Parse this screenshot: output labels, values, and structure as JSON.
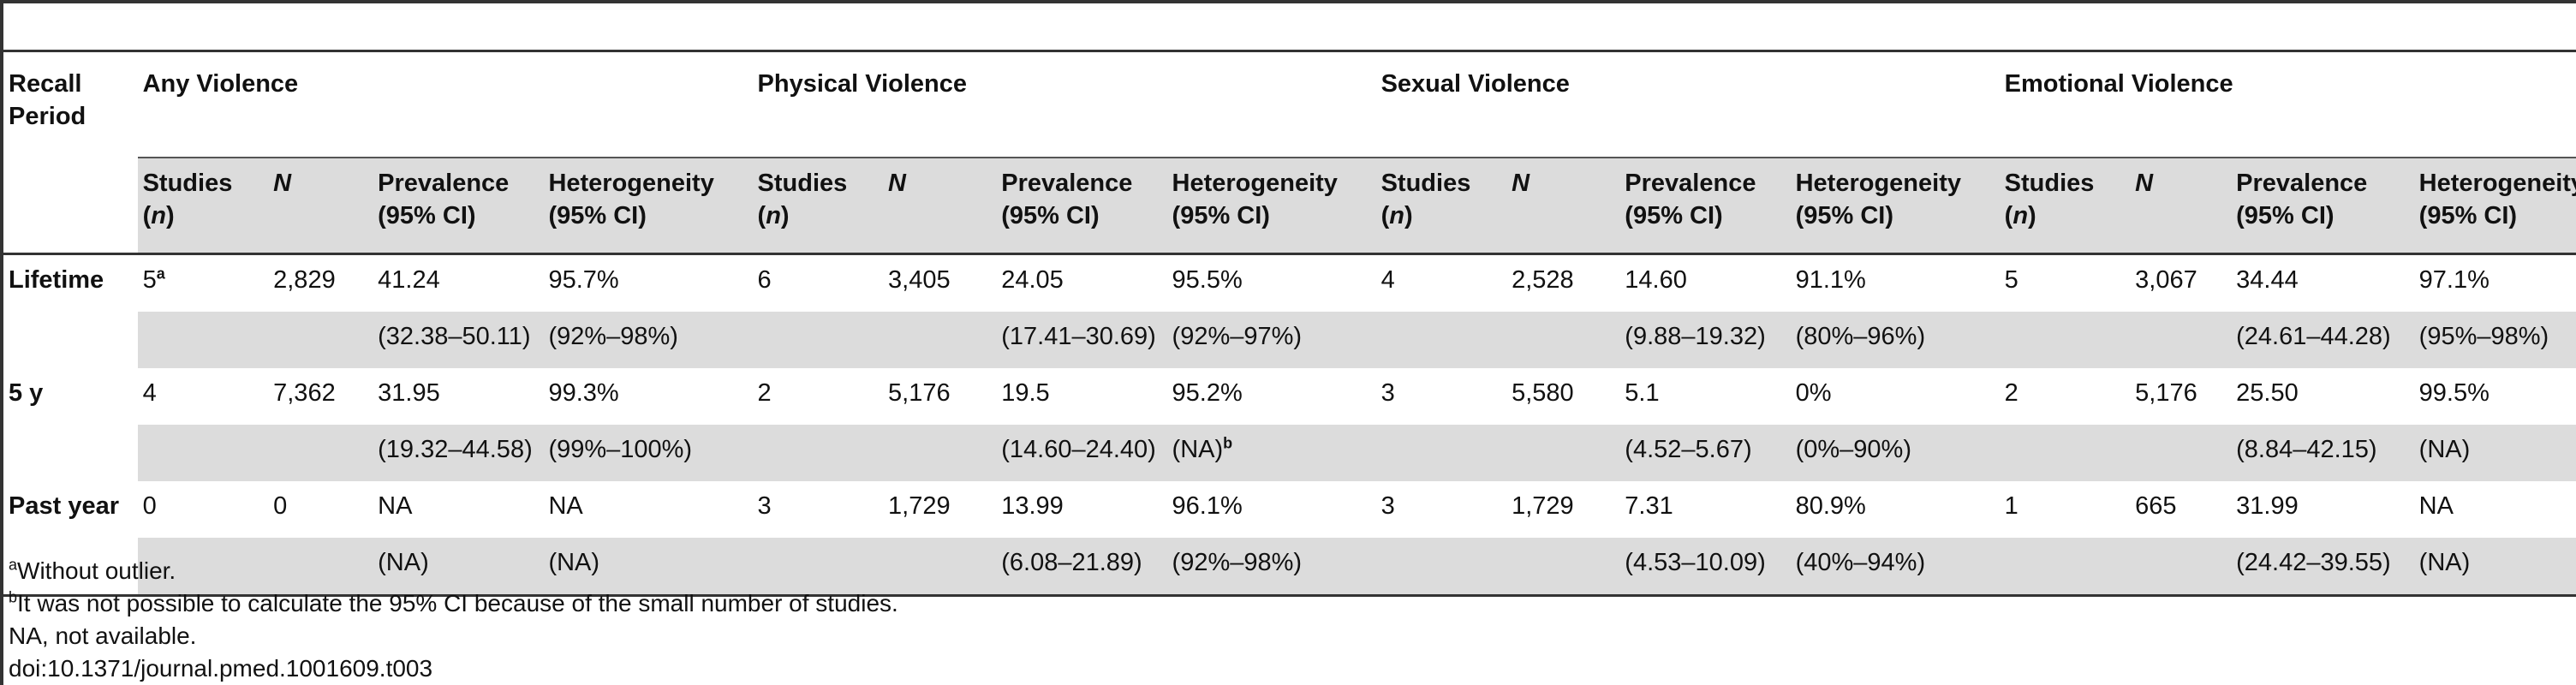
{
  "table": {
    "groups": {
      "recall_period": "Recall Period",
      "any": "Any Violence",
      "physical": "Physical Violence",
      "sexual": "Sexual Violence",
      "emotional": "Emotional Violence"
    },
    "subheaders": {
      "studies": "Studies",
      "n_italic": "n",
      "N": "N",
      "prevalence": "Prevalence",
      "prevalence_ci": "(95% CI)",
      "heterogeneity": "Heterogeneity",
      "heterogeneity_ci": "(95% CI)"
    },
    "rows": [
      {
        "period": "Lifetime",
        "any": {
          "studies": "5",
          "studies_sup": "a",
          "N": "2,829",
          "prev": "41.24",
          "het": "95.7%",
          "prev_ci": "(32.38–50.11)",
          "het_ci": "(92%–98%)"
        },
        "physical": {
          "studies": "6",
          "N": "3,405",
          "prev": "24.05",
          "het": "95.5%",
          "prev_ci": "(17.41–30.69)",
          "het_ci": "(92%–97%)"
        },
        "sexual": {
          "studies": "4",
          "N": "2,528",
          "prev": "14.60",
          "het": "91.1%",
          "prev_ci": "(9.88–19.32)",
          "het_ci": "(80%–96%)"
        },
        "emotional": {
          "studies": "5",
          "N": "3,067",
          "prev": "34.44",
          "het": "97.1%",
          "prev_ci": "(24.61–44.28)",
          "het_ci": "(95%–98%)"
        }
      },
      {
        "period": "5 y",
        "any": {
          "studies": "4",
          "N": "7,362",
          "prev": "31.95",
          "het": "99.3%",
          "prev_ci": "(19.32–44.58)",
          "het_ci": "(99%–100%)"
        },
        "physical": {
          "studies": "2",
          "N": "5,176",
          "prev": "19.5",
          "het": "95.2%",
          "prev_ci": "(14.60–24.40)",
          "het_ci": "(NA)",
          "het_ci_sup": "b"
        },
        "sexual": {
          "studies": "3",
          "N": "5,580",
          "prev": "5.1",
          "het": "0%",
          "prev_ci": "(4.52–5.67)",
          "het_ci": "(0%–90%)"
        },
        "emotional": {
          "studies": "2",
          "N": "5,176",
          "prev": "25.50",
          "het": "99.5%",
          "prev_ci": "(8.84–42.15)",
          "het_ci": "(NA)"
        }
      },
      {
        "period": "Past year",
        "any": {
          "studies": "0",
          "N": "0",
          "prev": "NA",
          "het": "NA",
          "prev_ci": "(NA)",
          "het_ci": "(NA)"
        },
        "physical": {
          "studies": "3",
          "N": "1,729",
          "prev": "13.99",
          "het": "96.1%",
          "prev_ci": "(6.08–21.89)",
          "het_ci": "(92%–98%)"
        },
        "sexual": {
          "studies": "3",
          "N": "1,729",
          "prev": "7.31",
          "het": "80.9%",
          "prev_ci": "(4.53–10.09)",
          "het_ci": "(40%–94%)"
        },
        "emotional": {
          "studies": "1",
          "N": "665",
          "prev": "31.99",
          "het": "NA",
          "prev_ci": "(24.42–39.55)",
          "het_ci": "(NA)"
        }
      }
    ]
  },
  "footnotes": {
    "a_marker": "a",
    "a_text": "Without outlier.",
    "b_marker": "b",
    "b_text": "It was not possible to calculate the 95% CI because of the small number of studies.",
    "na_text": "NA, not available.",
    "doi": "doi:10.1371/journal.pmed.1001609.t003"
  }
}
